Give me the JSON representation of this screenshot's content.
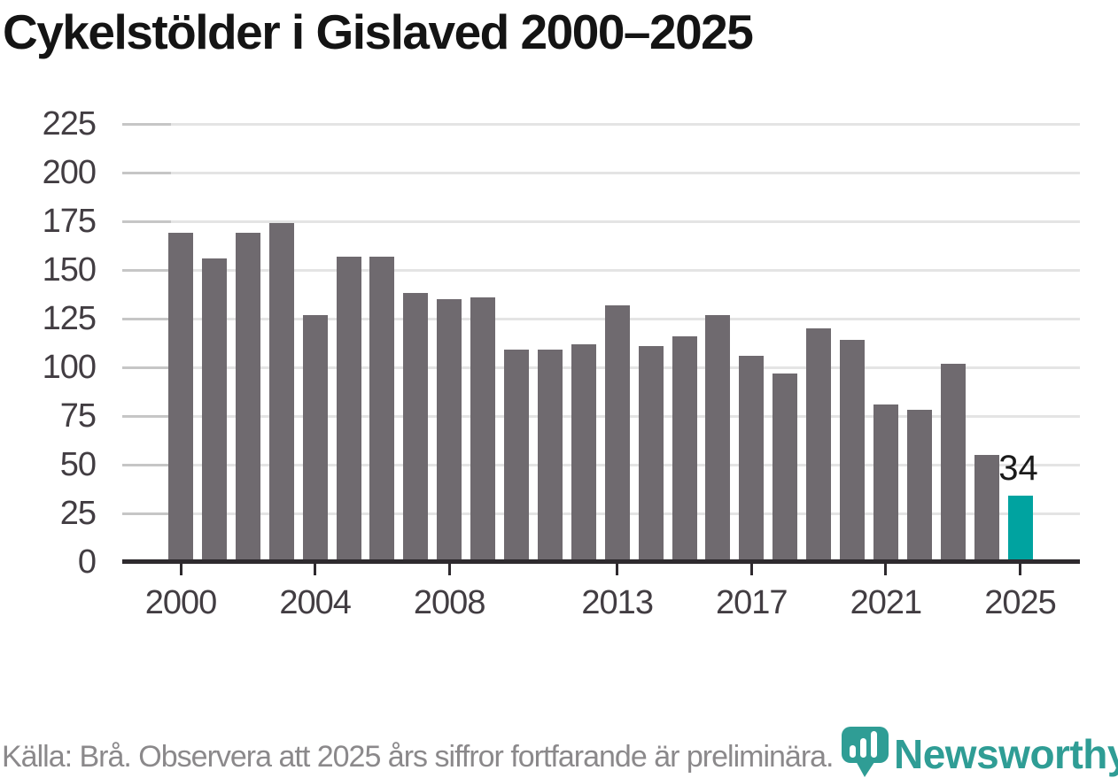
{
  "title": "Cykelstölder i Gislaved 2000–2025",
  "chart_data": {
    "type": "bar",
    "categories": [
      "2000",
      "2001",
      "2002",
      "2003",
      "2004",
      "2005",
      "2006",
      "2007",
      "2008",
      "2009",
      "2010",
      "2011",
      "2012",
      "2013",
      "2014",
      "2015",
      "2016",
      "2017",
      "2018",
      "2019",
      "2020",
      "2021",
      "2022",
      "2023",
      "2024",
      "2025"
    ],
    "values": [
      169,
      156,
      169,
      174,
      127,
      157,
      157,
      138,
      135,
      136,
      109,
      109,
      112,
      132,
      111,
      116,
      127,
      106,
      97,
      120,
      114,
      81,
      78,
      102,
      55,
      34
    ],
    "title": "Cykelstölder i Gislaved 2000–2025",
    "xlabel": "",
    "ylabel": "",
    "ylim": [
      0,
      235
    ],
    "y_ticks": [
      0,
      25,
      50,
      75,
      100,
      125,
      150,
      175,
      200,
      225
    ],
    "x_tick_labels": [
      "2000",
      "2004",
      "2008",
      "2013",
      "2017",
      "2021",
      "2025"
    ],
    "grid": true,
    "legend": "none",
    "bar_color": "#6f6a6f",
    "highlight_year": "2025",
    "highlight_color": "#00a3a0",
    "highlight_value_label": "34"
  },
  "footer": {
    "source_note": "Källa: Brå. Observera att 2025 års siffror fortfarande är preliminära."
  },
  "logo": {
    "wordmark": "Newsworthy",
    "badge_icon": "newsworthy-pin-bar-chart-icon",
    "color": "#2f9d95"
  }
}
